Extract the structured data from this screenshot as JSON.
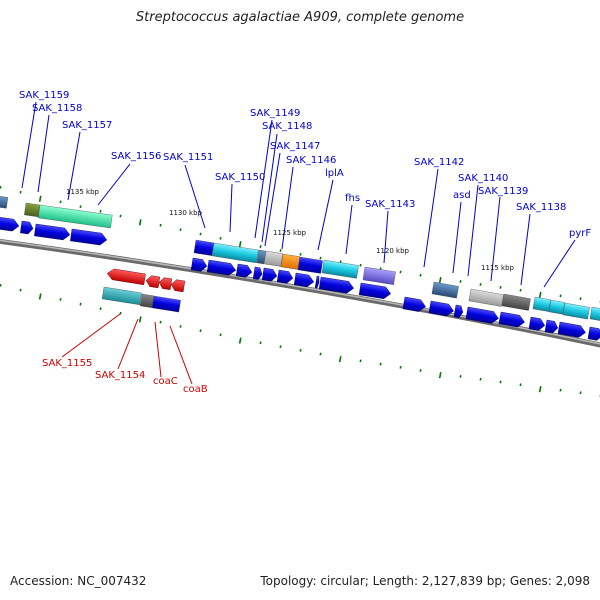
{
  "title": "Streptococcus agalactiae A909, complete genome",
  "footer": {
    "accession": "Accession: NC_007432",
    "stats": "Topology: circular; Length: 2,127,839 bp; Genes: 2,098"
  },
  "colors": {
    "forward_label": "#0000cc",
    "reverse_label": "#cc0000",
    "tick": "#007700",
    "backbone": "#777777"
  },
  "position_marks": [
    "1135 kbp",
    "1130 kbp",
    "1125 kbp",
    "1120 kbp",
    "1115 kbp"
  ],
  "genes_forward": [
    "SAK_1159",
    "SAK_1158",
    "SAK_1157",
    "SAK_1156",
    "SAK_1151",
    "SAK_1150",
    "SAK_1149",
    "SAK_1148",
    "SAK_1147",
    "SAK_1146",
    "lplA",
    "fhs",
    "SAK_1143",
    "SAK_1142",
    "asd",
    "SAK_1140",
    "SAK_1139",
    "SAK_1138",
    "pyrF"
  ],
  "genes_reverse": [
    "SAK_1155",
    "SAK_1154",
    "coaC",
    "coaB"
  ]
}
